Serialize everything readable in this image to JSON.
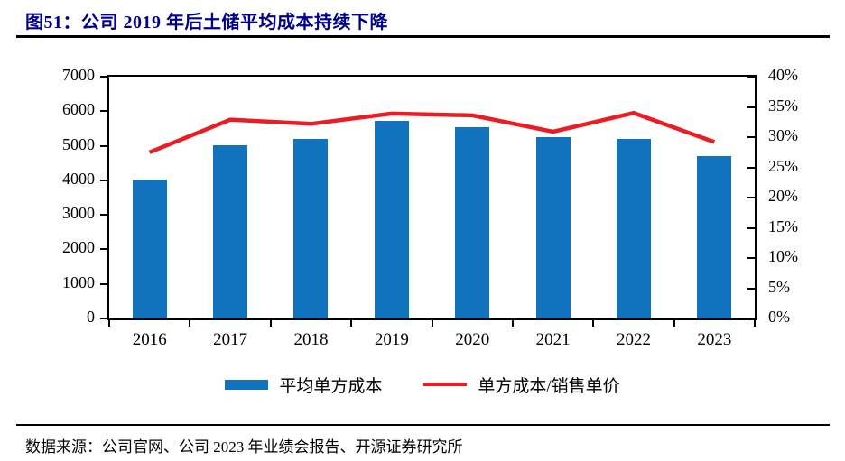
{
  "page": {
    "title": "图51：公司 2019 年后土储平均成本持续下降",
    "source": "数据来源：公司官网、公司 2023 年业绩会报告、开源证券研究所"
  },
  "legend": {
    "bar_label": "平均单方成本",
    "line_label": "单方成本/销售单价"
  },
  "colors": {
    "bar_blue": "#1172BD",
    "line_red": "#EC1C24",
    "title_navy": "#00008B",
    "axis_black": "#000000"
  },
  "chart_data": {
    "type": "bar",
    "combo": "bar+line, dual y-axis",
    "title": "图51：公司 2019 年后土储平均成本持续下降",
    "categories": [
      "2016",
      "2017",
      "2018",
      "2019",
      "2020",
      "2021",
      "2022",
      "2023"
    ],
    "series": [
      {
        "name": "平均单方成本",
        "type": "bar",
        "axis": "left",
        "values": [
          4030,
          5020,
          5210,
          5730,
          5550,
          5260,
          5210,
          4700
        ]
      },
      {
        "name": "单方成本/销售单价",
        "type": "line",
        "axis": "right",
        "values": [
          27.5,
          32.9,
          32.2,
          33.9,
          33.6,
          30.9,
          34.0,
          29.2
        ]
      }
    ],
    "left_axis": {
      "min": 0,
      "max": 7000,
      "step": 1000,
      "tick_labels": [
        "0",
        "1000",
        "2000",
        "3000",
        "4000",
        "5000",
        "6000",
        "7000"
      ]
    },
    "right_axis": {
      "min": 0,
      "max": 40,
      "step": 5,
      "unit": "%",
      "tick_labels": [
        "0%",
        "5%",
        "10%",
        "15%",
        "20%",
        "25%",
        "30%",
        "35%",
        "40%"
      ]
    },
    "grid": false,
    "legend_position": "bottom"
  }
}
